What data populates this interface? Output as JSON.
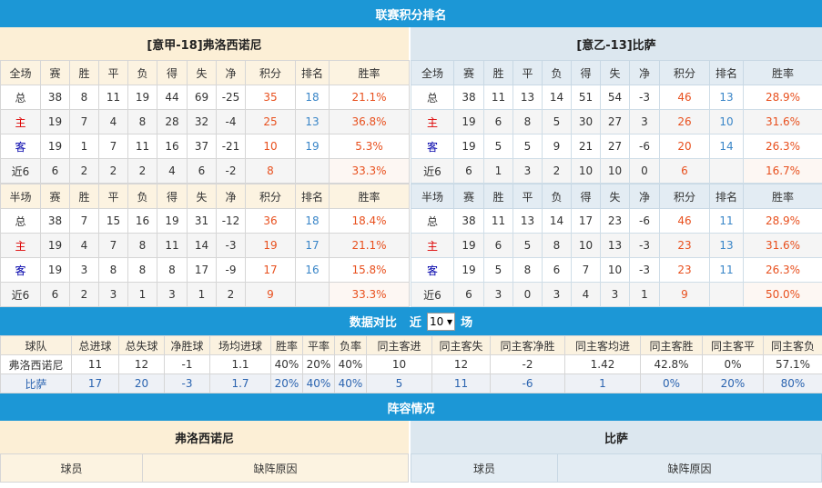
{
  "title": "联赛积分排名",
  "colors": {
    "header": "#1c97d6",
    "points": "#e8501e",
    "rank": "#3a86c8"
  },
  "teams": [
    {
      "name": "[意甲-18]弗洛西诺尼",
      "full": {
        "header": [
          "全场",
          "赛",
          "胜",
          "平",
          "负",
          "得",
          "失",
          "净",
          "积分",
          "排名",
          "胜率"
        ],
        "rows": [
          [
            "总",
            "38",
            "8",
            "11",
            "19",
            "44",
            "69",
            "-25",
            "35",
            "18",
            "21.1%"
          ],
          [
            "主",
            "19",
            "7",
            "4",
            "8",
            "28",
            "32",
            "-4",
            "25",
            "13",
            "36.8%"
          ],
          [
            "客",
            "19",
            "1",
            "7",
            "11",
            "16",
            "37",
            "-21",
            "10",
            "19",
            "5.3%"
          ],
          [
            "近6",
            "6",
            "2",
            "2",
            "2",
            "4",
            "6",
            "-2",
            "8",
            "",
            "33.3%"
          ]
        ]
      },
      "half": {
        "header": [
          "半场",
          "赛",
          "胜",
          "平",
          "负",
          "得",
          "失",
          "净",
          "积分",
          "排名",
          "胜率"
        ],
        "rows": [
          [
            "总",
            "38",
            "7",
            "15",
            "16",
            "19",
            "31",
            "-12",
            "36",
            "18",
            "18.4%"
          ],
          [
            "主",
            "19",
            "4",
            "7",
            "8",
            "11",
            "14",
            "-3",
            "19",
            "17",
            "21.1%"
          ],
          [
            "客",
            "19",
            "3",
            "8",
            "8",
            "8",
            "17",
            "-9",
            "17",
            "16",
            "15.8%"
          ],
          [
            "近6",
            "6",
            "2",
            "3",
            "1",
            "3",
            "1",
            "2",
            "9",
            "",
            "33.3%"
          ]
        ]
      }
    },
    {
      "name": "[意乙-13]比萨",
      "full": {
        "header": [
          "全场",
          "赛",
          "胜",
          "平",
          "负",
          "得",
          "失",
          "净",
          "积分",
          "排名",
          "胜率"
        ],
        "rows": [
          [
            "总",
            "38",
            "11",
            "13",
            "14",
            "51",
            "54",
            "-3",
            "46",
            "13",
            "28.9%"
          ],
          [
            "主",
            "19",
            "6",
            "8",
            "5",
            "30",
            "27",
            "3",
            "26",
            "10",
            "31.6%"
          ],
          [
            "客",
            "19",
            "5",
            "5",
            "9",
            "21",
            "27",
            "-6",
            "20",
            "14",
            "26.3%"
          ],
          [
            "近6",
            "6",
            "1",
            "3",
            "2",
            "10",
            "10",
            "0",
            "6",
            "",
            "16.7%"
          ]
        ]
      },
      "half": {
        "header": [
          "半场",
          "赛",
          "胜",
          "平",
          "负",
          "得",
          "失",
          "净",
          "积分",
          "排名",
          "胜率"
        ],
        "rows": [
          [
            "总",
            "38",
            "11",
            "13",
            "14",
            "17",
            "23",
            "-6",
            "46",
            "11",
            "28.9%"
          ],
          [
            "主",
            "19",
            "6",
            "5",
            "8",
            "10",
            "13",
            "-3",
            "23",
            "13",
            "31.6%"
          ],
          [
            "客",
            "19",
            "5",
            "8",
            "6",
            "7",
            "10",
            "-3",
            "23",
            "11",
            "26.3%"
          ],
          [
            "近6",
            "6",
            "3",
            "0",
            "3",
            "4",
            "3",
            "1",
            "9",
            "",
            "50.0%"
          ]
        ]
      }
    }
  ],
  "compare": {
    "title": "数据对比",
    "prefix": "近",
    "select_value": "10",
    "suffix": "场",
    "header": [
      "球队",
      "总进球",
      "总失球",
      "净胜球",
      "场均进球",
      "胜率",
      "平率",
      "负率",
      "同主客进",
      "同主客失",
      "同主客净胜",
      "同主客均进",
      "同主客胜",
      "同主客平",
      "同主客负"
    ],
    "rows": [
      [
        "弗洛西诺尼",
        "11",
        "12",
        "-1",
        "1.1",
        "40%",
        "20%",
        "40%",
        "10",
        "12",
        "-2",
        "1.42",
        "42.8%",
        "0%",
        "57.1%"
      ],
      [
        "比萨",
        "17",
        "20",
        "-3",
        "1.7",
        "20%",
        "40%",
        "40%",
        "5",
        "11",
        "-6",
        "1",
        "0%",
        "20%",
        "80%"
      ]
    ]
  },
  "lineup": {
    "title": "阵容情况",
    "teams": [
      "弗洛西诺尼",
      "比萨"
    ],
    "header": [
      "球员",
      "缺阵原因"
    ]
  }
}
